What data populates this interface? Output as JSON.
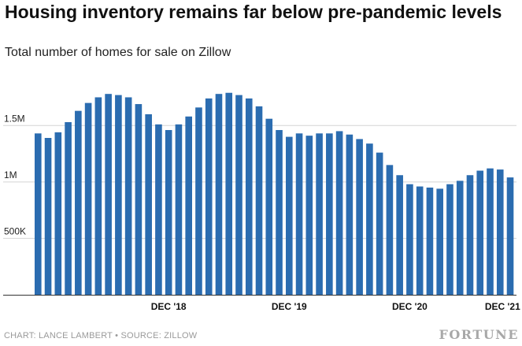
{
  "title": "Housing inventory remains far below pre-pandemic levels",
  "subtitle": "Total number of homes for sale on Zillow",
  "footer": {
    "source": "CHART: LANCE LAMBERT • SOURCE: ZILLOW",
    "brand": "FORTUNE"
  },
  "colors": {
    "bar": "#2b6cb0",
    "grid": "#d4d4d4",
    "axis": "#333333"
  },
  "chart_data": {
    "type": "bar",
    "ylim": [
      0,
      1900000
    ],
    "y_ticks": [
      {
        "value": 500000,
        "label": "500K"
      },
      {
        "value": 1000000,
        "label": "1M"
      },
      {
        "value": 1500000,
        "label": "1.5M"
      }
    ],
    "x_ticks": [
      {
        "index": 13,
        "label": "DEC '18"
      },
      {
        "index": 25,
        "label": "DEC '19"
      },
      {
        "index": 37,
        "label": "DEC '20"
      },
      {
        "index": 48,
        "label": "DEC '21"
      }
    ],
    "grid": true,
    "values": [
      1430000,
      1390000,
      1440000,
      1530000,
      1630000,
      1700000,
      1750000,
      1780000,
      1770000,
      1750000,
      1690000,
      1600000,
      1510000,
      1460000,
      1510000,
      1580000,
      1660000,
      1740000,
      1780000,
      1790000,
      1770000,
      1740000,
      1670000,
      1560000,
      1460000,
      1400000,
      1430000,
      1410000,
      1430000,
      1430000,
      1450000,
      1420000,
      1380000,
      1340000,
      1260000,
      1150000,
      1060000,
      980000,
      960000,
      950000,
      940000,
      980000,
      1010000,
      1060000,
      1100000,
      1120000,
      1110000,
      1040000
    ]
  }
}
